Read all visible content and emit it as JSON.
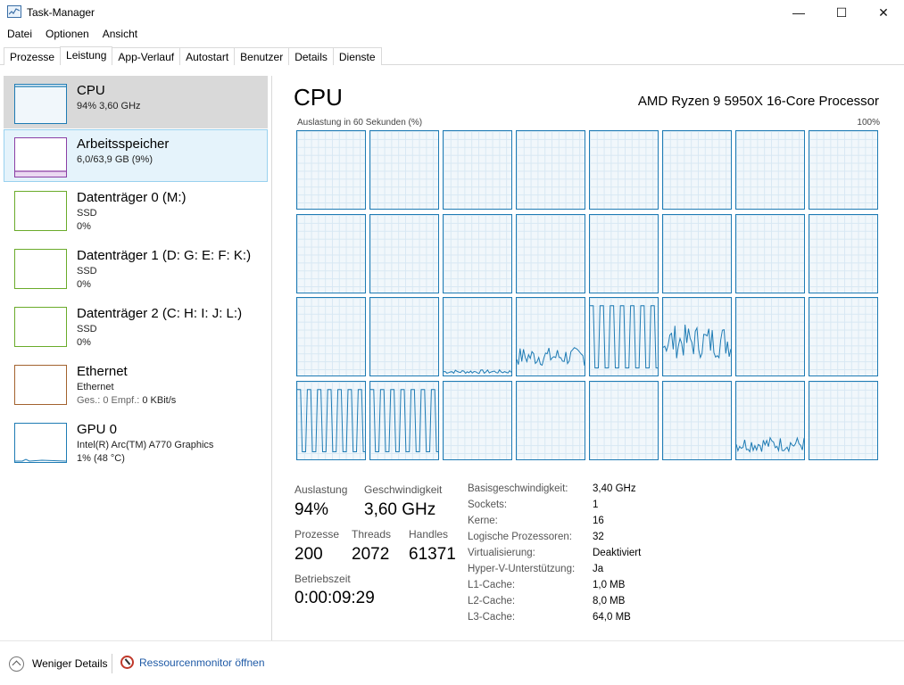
{
  "window": {
    "title": "Task-Manager",
    "minimize": "—",
    "maximize": "☐",
    "close": "✕"
  },
  "menu": [
    "Datei",
    "Optionen",
    "Ansicht"
  ],
  "tabs": [
    "Prozesse",
    "Leistung",
    "App-Verlauf",
    "Autostart",
    "Benutzer",
    "Details",
    "Dienste"
  ],
  "active_tab": "Leistung",
  "sidebar": [
    {
      "name": "CPU",
      "sub1": "94%  3,60 GHz",
      "sub2": "",
      "color": "#1e7bb4",
      "state": "selected"
    },
    {
      "name": "Arbeitsspeicher",
      "sub1": "6,0/63,9 GB (9%)",
      "sub2": "",
      "color": "#8b3fa5",
      "state": "hover"
    },
    {
      "name": "Datenträger 0 (M:)",
      "sub1": "SSD",
      "sub2": "0%",
      "color": "#6aab2a",
      "state": ""
    },
    {
      "name": "Datenträger 1 (D: G: E: F: K:)",
      "sub1": "SSD",
      "sub2": "0%",
      "color": "#6aab2a",
      "state": ""
    },
    {
      "name": "Datenträger 2 (C: H: I: J: L:)",
      "sub1": "SSD",
      "sub2": "0%",
      "color": "#6aab2a",
      "state": ""
    },
    {
      "name": "Ethernet",
      "sub1": "Ethernet",
      "sub2_label": "Ges.: 0 Empf.: ",
      "sub2_value": "0 KBit/s",
      "color": "#a3622e",
      "state": ""
    },
    {
      "name": "GPU 0",
      "sub1": "Intel(R) Arc(TM) A770 Graphics",
      "sub2": "1% (48 °C)",
      "color": "#1e7bb4",
      "state": ""
    }
  ],
  "main": {
    "title": "CPU",
    "processor": "AMD Ryzen 9 5950X 16-Core Processor",
    "graph_label": "Auslastung in 60 Sekunden (%)",
    "graph_max": "100%",
    "graph_color": "#1e7bb4",
    "core_activity_percent": [
      0,
      0,
      0,
      0,
      0,
      0,
      0,
      0,
      0,
      0,
      0,
      0,
      0,
      0,
      0,
      0,
      0,
      0,
      5,
      25,
      85,
      45,
      0,
      0,
      75,
      75,
      0,
      0,
      0,
      0,
      20,
      0
    ]
  },
  "stats": {
    "auslastung_label": "Auslastung",
    "auslastung_value": "94%",
    "geschwindigkeit_label": "Geschwindigkeit",
    "geschwindigkeit_value": "3,60 GHz",
    "prozesse_label": "Prozesse",
    "prozesse_value": "200",
    "threads_label": "Threads",
    "threads_value": "2072",
    "handles_label": "Handles",
    "handles_value": "61371",
    "betriebszeit_label": "Betriebszeit",
    "betriebszeit_value": "0:00:09:29"
  },
  "info": [
    {
      "k": "Basisgeschwindigkeit:",
      "v": "3,40 GHz"
    },
    {
      "k": "Sockets:",
      "v": "1"
    },
    {
      "k": "Kerne:",
      "v": "16"
    },
    {
      "k": "Logische Prozessoren:",
      "v": "32"
    },
    {
      "k": "Virtualisierung:",
      "v": "Deaktiviert"
    },
    {
      "k": "Hyper-V-Unterstützung:",
      "v": "Ja"
    },
    {
      "k": "L1-Cache:",
      "v": "1,0 MB"
    },
    {
      "k": "L2-Cache:",
      "v": "8,0 MB"
    },
    {
      "k": "L3-Cache:",
      "v": "64,0 MB"
    }
  ],
  "footer": {
    "fewer_details": "Weniger Details",
    "resource_monitor": "Ressourcenmonitor öffnen"
  }
}
